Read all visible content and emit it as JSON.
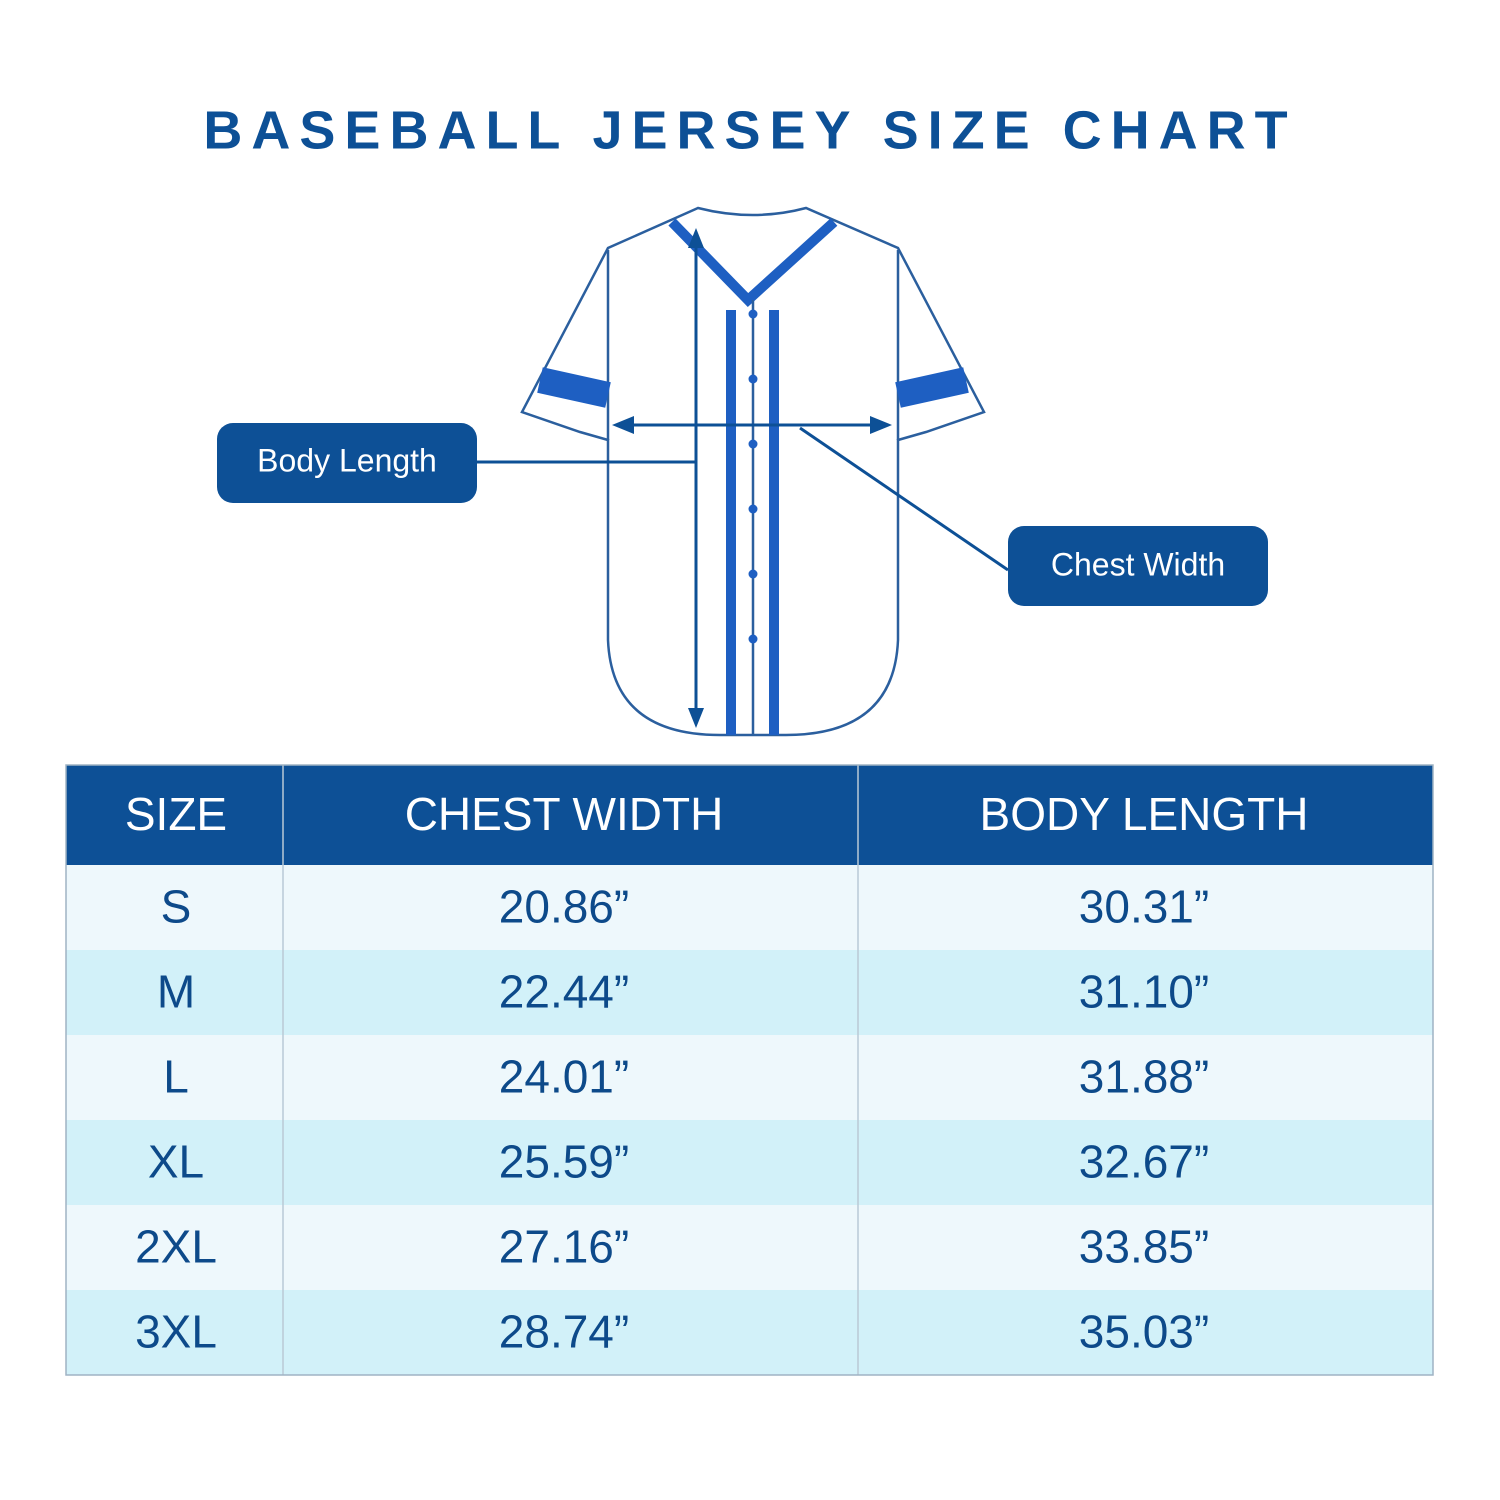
{
  "header": {
    "title": "BASEBALL JERSEY SIZE CHART"
  },
  "diagram": {
    "labels": [
      "Body Length",
      "Chest Width"
    ]
  },
  "table": {
    "columns": [
      "SIZE",
      "CHEST WIDTH",
      "BODY LENGTH"
    ],
    "rows": [
      [
        "S",
        "20.86”",
        "30.31”"
      ],
      [
        "M",
        "22.44”",
        "31.10”"
      ],
      [
        "L",
        "24.01”",
        "31.88”"
      ],
      [
        "XL",
        "25.59”",
        "32.67”"
      ],
      [
        "2XL",
        "27.16”",
        "33.85”"
      ],
      [
        "3XL",
        "28.74”",
        "35.03”"
      ]
    ]
  }
}
